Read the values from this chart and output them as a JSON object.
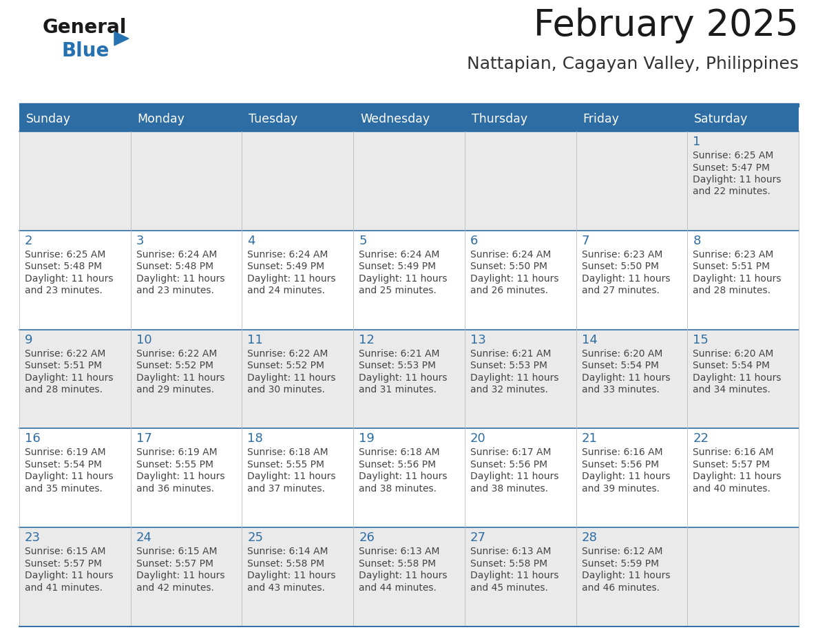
{
  "title": "February 2025",
  "subtitle": "Nattapian, Cagayan Valley, Philippines",
  "header_color": "#2E6DA4",
  "header_text_color": "#FFFFFF",
  "cell_bg_even": "#EAEAEA",
  "cell_bg_odd": "#FFFFFF",
  "day_number_color": "#2E6DA4",
  "cell_text_color": "#444444",
  "logo_general_color": "#1a1a1a",
  "logo_blue_color": "#2672B0",
  "days_of_week": [
    "Sunday",
    "Monday",
    "Tuesday",
    "Wednesday",
    "Thursday",
    "Friday",
    "Saturday"
  ],
  "weeks": [
    [
      {
        "day": "",
        "sunrise": "",
        "sunset": "",
        "daylight_h": "",
        "daylight_m": ""
      },
      {
        "day": "",
        "sunrise": "",
        "sunset": "",
        "daylight_h": "",
        "daylight_m": ""
      },
      {
        "day": "",
        "sunrise": "",
        "sunset": "",
        "daylight_h": "",
        "daylight_m": ""
      },
      {
        "day": "",
        "sunrise": "",
        "sunset": "",
        "daylight_h": "",
        "daylight_m": ""
      },
      {
        "day": "",
        "sunrise": "",
        "sunset": "",
        "daylight_h": "",
        "daylight_m": ""
      },
      {
        "day": "",
        "sunrise": "",
        "sunset": "",
        "daylight_h": "",
        "daylight_m": ""
      },
      {
        "day": "1",
        "sunrise": "6:25 AM",
        "sunset": "5:47 PM",
        "daylight_h": "11",
        "daylight_m": "22"
      }
    ],
    [
      {
        "day": "2",
        "sunrise": "6:25 AM",
        "sunset": "5:48 PM",
        "daylight_h": "11",
        "daylight_m": "23"
      },
      {
        "day": "3",
        "sunrise": "6:24 AM",
        "sunset": "5:48 PM",
        "daylight_h": "11",
        "daylight_m": "23"
      },
      {
        "day": "4",
        "sunrise": "6:24 AM",
        "sunset": "5:49 PM",
        "daylight_h": "11",
        "daylight_m": "24"
      },
      {
        "day": "5",
        "sunrise": "6:24 AM",
        "sunset": "5:49 PM",
        "daylight_h": "11",
        "daylight_m": "25"
      },
      {
        "day": "6",
        "sunrise": "6:24 AM",
        "sunset": "5:50 PM",
        "daylight_h": "11",
        "daylight_m": "26"
      },
      {
        "day": "7",
        "sunrise": "6:23 AM",
        "sunset": "5:50 PM",
        "daylight_h": "11",
        "daylight_m": "27"
      },
      {
        "day": "8",
        "sunrise": "6:23 AM",
        "sunset": "5:51 PM",
        "daylight_h": "11",
        "daylight_m": "28"
      }
    ],
    [
      {
        "day": "9",
        "sunrise": "6:22 AM",
        "sunset": "5:51 PM",
        "daylight_h": "11",
        "daylight_m": "28"
      },
      {
        "day": "10",
        "sunrise": "6:22 AM",
        "sunset": "5:52 PM",
        "daylight_h": "11",
        "daylight_m": "29"
      },
      {
        "day": "11",
        "sunrise": "6:22 AM",
        "sunset": "5:52 PM",
        "daylight_h": "11",
        "daylight_m": "30"
      },
      {
        "day": "12",
        "sunrise": "6:21 AM",
        "sunset": "5:53 PM",
        "daylight_h": "11",
        "daylight_m": "31"
      },
      {
        "day": "13",
        "sunrise": "6:21 AM",
        "sunset": "5:53 PM",
        "daylight_h": "11",
        "daylight_m": "32"
      },
      {
        "day": "14",
        "sunrise": "6:20 AM",
        "sunset": "5:54 PM",
        "daylight_h": "11",
        "daylight_m": "33"
      },
      {
        "day": "15",
        "sunrise": "6:20 AM",
        "sunset": "5:54 PM",
        "daylight_h": "11",
        "daylight_m": "34"
      }
    ],
    [
      {
        "day": "16",
        "sunrise": "6:19 AM",
        "sunset": "5:54 PM",
        "daylight_h": "11",
        "daylight_m": "35"
      },
      {
        "day": "17",
        "sunrise": "6:19 AM",
        "sunset": "5:55 PM",
        "daylight_h": "11",
        "daylight_m": "36"
      },
      {
        "day": "18",
        "sunrise": "6:18 AM",
        "sunset": "5:55 PM",
        "daylight_h": "11",
        "daylight_m": "37"
      },
      {
        "day": "19",
        "sunrise": "6:18 AM",
        "sunset": "5:56 PM",
        "daylight_h": "11",
        "daylight_m": "38"
      },
      {
        "day": "20",
        "sunrise": "6:17 AM",
        "sunset": "5:56 PM",
        "daylight_h": "11",
        "daylight_m": "38"
      },
      {
        "day": "21",
        "sunrise": "6:16 AM",
        "sunset": "5:56 PM",
        "daylight_h": "11",
        "daylight_m": "39"
      },
      {
        "day": "22",
        "sunrise": "6:16 AM",
        "sunset": "5:57 PM",
        "daylight_h": "11",
        "daylight_m": "40"
      }
    ],
    [
      {
        "day": "23",
        "sunrise": "6:15 AM",
        "sunset": "5:57 PM",
        "daylight_h": "11",
        "daylight_m": "41"
      },
      {
        "day": "24",
        "sunrise": "6:15 AM",
        "sunset": "5:57 PM",
        "daylight_h": "11",
        "daylight_m": "42"
      },
      {
        "day": "25",
        "sunrise": "6:14 AM",
        "sunset": "5:58 PM",
        "daylight_h": "11",
        "daylight_m": "43"
      },
      {
        "day": "26",
        "sunrise": "6:13 AM",
        "sunset": "5:58 PM",
        "daylight_h": "11",
        "daylight_m": "44"
      },
      {
        "day": "27",
        "sunrise": "6:13 AM",
        "sunset": "5:58 PM",
        "daylight_h": "11",
        "daylight_m": "45"
      },
      {
        "day": "28",
        "sunrise": "6:12 AM",
        "sunset": "5:59 PM",
        "daylight_h": "11",
        "daylight_m": "46"
      },
      {
        "day": "",
        "sunrise": "",
        "sunset": "",
        "daylight_h": "",
        "daylight_m": ""
      }
    ]
  ]
}
